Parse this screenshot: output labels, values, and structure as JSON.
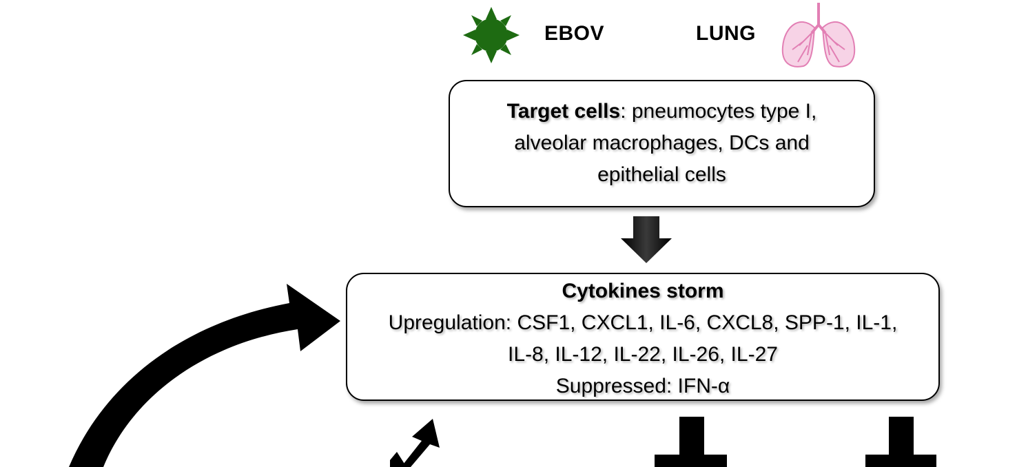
{
  "header": {
    "virus_label": "EBOV",
    "organ_label": "LUNG"
  },
  "target_box": {
    "title": "Target cells",
    "text_line1": ": pneumocytes type I,",
    "text_line2": "alveolar macrophages, DCs and",
    "text_line3": "epithelial cells"
  },
  "storm_box": {
    "title": "Cytokines storm",
    "line1": "Upregulation: CSF1, CXCL1, IL-6, CXCL8, SPP-1, IL-1,",
    "line2": "IL-8, IL-12, IL-22, IL-26, IL-27",
    "line3": "Suppressed: IFN-α"
  },
  "icons": {
    "virus": "virus-icon",
    "lung": "lung-icon",
    "virus_color": "#1e6b12",
    "lung_color": "#e27fb4"
  }
}
